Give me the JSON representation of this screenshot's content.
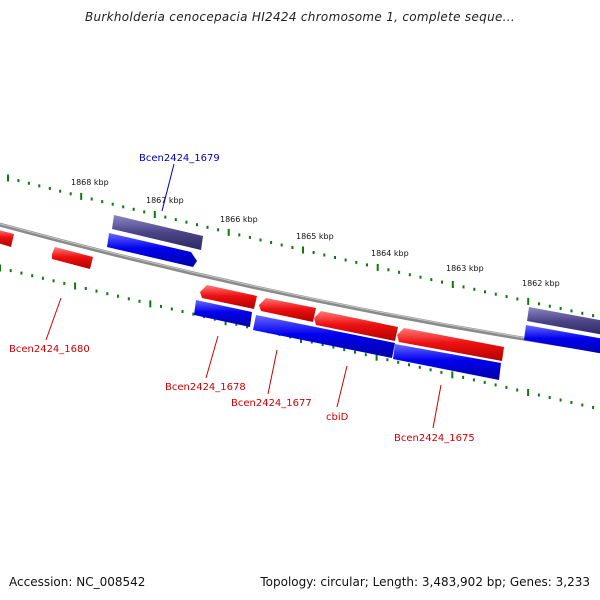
{
  "header": {
    "title": "Burkholderia cenocepacia HI2424 chromosome 1, complete seque..."
  },
  "footer": {
    "accession": "Accession: NC_008542",
    "summary": "Topology: circular; Length: 3,483,902 bp; Genes: 3,233"
  },
  "colors": {
    "forward_strand": "#ee1111",
    "reverse_strand": "#0000ee",
    "selected_gene": "#4b4488",
    "backbone": "#8a8a8a",
    "tick": "#0a7a0a",
    "label_forward": "#cc0000",
    "label_reverse": "#0000bb"
  },
  "ruler": {
    "ticks": [
      "1868 kbp",
      "1867 kbp",
      "1866 kbp",
      "1865 kbp",
      "1864 kbp",
      "1863 kbp",
      "1862 kbp"
    ]
  },
  "genes": [
    {
      "label": "Bcen2424_1679",
      "strand": "reverse",
      "highlighted": true
    },
    {
      "label": "Bcen2424_1680",
      "strand": "forward",
      "highlighted": false
    },
    {
      "label": "Bcen2424_1678",
      "strand": "reverse",
      "highlighted": false
    },
    {
      "label": "Bcen2424_1677",
      "strand": "forward",
      "highlighted": false
    },
    {
      "label": "cbiD",
      "strand": "reverse",
      "highlighted": false
    },
    {
      "label": "Bcen2424_1675",
      "strand": "forward",
      "highlighted": false
    }
  ]
}
